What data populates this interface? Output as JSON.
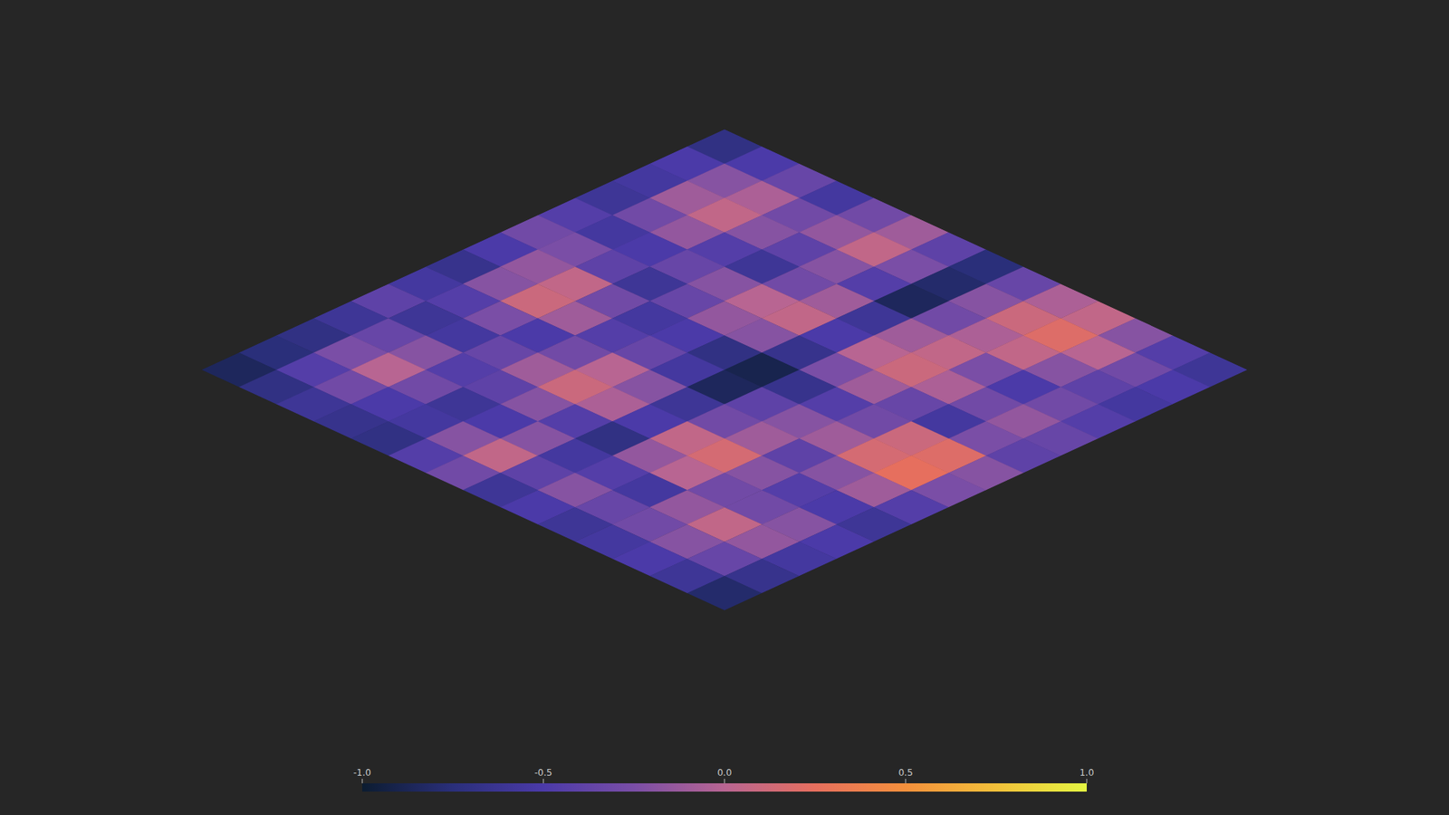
{
  "chart_data": {
    "type": "heatmap",
    "tick_labels": false,
    "cells": [
      [
        -0.7,
        -0.5,
        -0.35,
        -0.55,
        -0.3,
        -0.1,
        -0.4,
        -0.75,
        -0.35,
        -0.05,
        0.05,
        -0.2,
        -0.45,
        -0.6
      ],
      [
        -0.5,
        -0.2,
        -0.05,
        -0.3,
        -0.15,
        0.05,
        -0.25,
        -0.8,
        -0.2,
        0.1,
        0.2,
        0.0,
        -0.3,
        -0.5
      ],
      [
        -0.55,
        -0.1,
        0.05,
        -0.2,
        -0.4,
        -0.2,
        -0.45,
        -0.85,
        -0.3,
        -0.05,
        0.05,
        -0.2,
        -0.4,
        -0.55
      ],
      [
        -0.6,
        -0.3,
        -0.15,
        -0.45,
        -0.6,
        -0.3,
        -0.1,
        -0.6,
        -0.1,
        0.05,
        -0.25,
        -0.5,
        -0.3,
        -0.45
      ],
      [
        -0.45,
        -0.55,
        -0.5,
        -0.35,
        -0.2,
        0.0,
        0.05,
        -0.5,
        0.0,
        0.1,
        -0.05,
        -0.3,
        -0.15,
        -0.35
      ],
      [
        -0.3,
        -0.25,
        -0.4,
        -0.6,
        -0.35,
        -0.15,
        -0.2,
        -0.65,
        -0.25,
        -0.1,
        -0.35,
        -0.55,
        -0.25,
        -0.4
      ],
      [
        -0.5,
        -0.15,
        0.05,
        -0.3,
        -0.55,
        -0.5,
        -0.7,
        -0.9,
        -0.65,
        -0.45,
        -0.3,
        0.1,
        0.2,
        -0.2
      ],
      [
        -0.65,
        -0.2,
        0.1,
        -0.1,
        -0.45,
        -0.35,
        -0.55,
        -0.85,
        -0.4,
        -0.2,
        -0.1,
        0.15,
        0.25,
        -0.25
      ],
      [
        -0.55,
        -0.45,
        -0.25,
        -0.5,
        -0.3,
        0.0,
        -0.2,
        -0.6,
        -0.3,
        -0.1,
        -0.4,
        -0.2,
        -0.1,
        -0.45
      ],
      [
        -0.4,
        -0.6,
        -0.55,
        -0.35,
        -0.1,
        0.1,
        -0.05,
        -0.5,
        0.05,
        0.15,
        -0.2,
        -0.45,
        -0.5,
        -0.6
      ],
      [
        -0.6,
        -0.35,
        -0.2,
        -0.45,
        -0.4,
        -0.2,
        -0.45,
        -0.7,
        -0.15,
        0.0,
        -0.3,
        -0.3,
        -0.2,
        -0.5
      ],
      [
        -0.7,
        -0.25,
        0.0,
        -0.3,
        -0.6,
        -0.5,
        -0.2,
        -0.55,
        -0.45,
        -0.55,
        -0.15,
        0.05,
        -0.15,
        -0.55
      ],
      [
        -0.75,
        -0.45,
        -0.3,
        -0.5,
        -0.55,
        -0.2,
        0.05,
        -0.4,
        -0.2,
        -0.35,
        -0.3,
        -0.2,
        -0.35,
        -0.65
      ],
      [
        -0.85,
        -0.7,
        -0.6,
        -0.65,
        -0.7,
        -0.45,
        -0.3,
        -0.6,
        -0.5,
        -0.6,
        -0.55,
        -0.5,
        -0.6,
        -0.8
      ]
    ],
    "colorbar": {
      "range": [
        -1,
        1
      ],
      "ticks": [
        {
          "value": -1,
          "label": "-1.0"
        },
        {
          "value": -0.5,
          "label": "-0.5"
        },
        {
          "value": 0,
          "label": "0.0"
        },
        {
          "value": 0.5,
          "label": "0.5"
        },
        {
          "value": 1,
          "label": "1.0"
        }
      ]
    }
  }
}
